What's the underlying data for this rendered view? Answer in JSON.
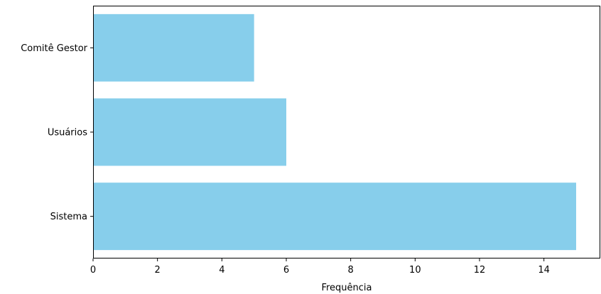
{
  "chart_data": {
    "type": "bar",
    "orientation": "horizontal",
    "categories": [
      "Sistema",
      "Usuários",
      "Comitê Gestor"
    ],
    "values": [
      15,
      6,
      5
    ],
    "xlabel": "Frequência",
    "ylabel": "",
    "title": "",
    "xlim": [
      0,
      15.75
    ],
    "xticks": [
      0,
      2,
      4,
      6,
      8,
      10,
      12,
      14
    ],
    "bar_color": "#87CEEB",
    "grid": false,
    "legend": "none"
  }
}
